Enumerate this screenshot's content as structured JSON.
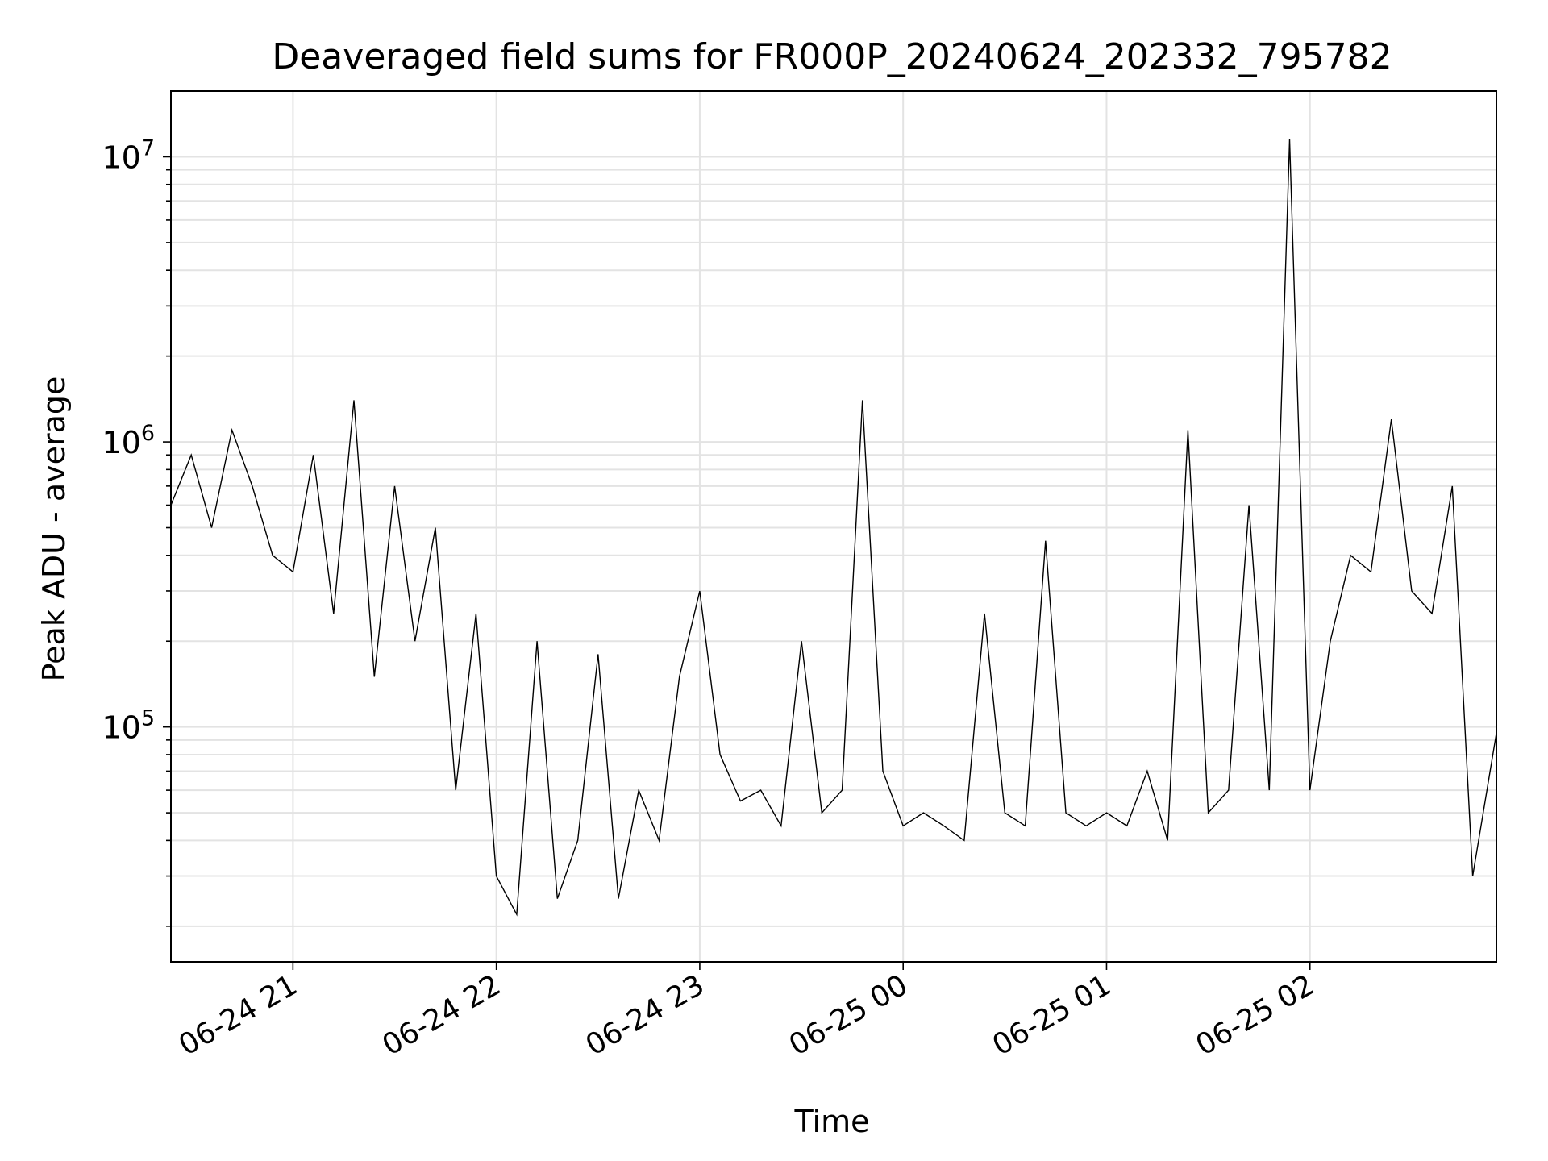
{
  "chart_data": {
    "type": "line",
    "title": "Deaveraged field sums for FR000P_20240624_202332_795782",
    "xlabel": "Time",
    "ylabel": "Peak ADU - average",
    "y_scale": "log",
    "ylim": [
      15000,
      17000000
    ],
    "xlim": [
      "2024-06-24 20:24",
      "2024-06-25 02:55"
    ],
    "grid": true,
    "legend": "none",
    "line_color": "#000000",
    "x_ticks": [
      {
        "value": "2024-06-24 21:00",
        "label": "06-24 21"
      },
      {
        "value": "2024-06-24 22:00",
        "label": "06-24 22"
      },
      {
        "value": "2024-06-24 23:00",
        "label": "06-24 23"
      },
      {
        "value": "2024-06-25 00:00",
        "label": "06-25 00"
      },
      {
        "value": "2024-06-25 01:00",
        "label": "06-25 01"
      },
      {
        "value": "2024-06-25 02:00",
        "label": "06-25 02"
      }
    ],
    "y_ticks": [
      {
        "value": 100000,
        "base": "10",
        "exp": "5"
      },
      {
        "value": 1000000,
        "base": "10",
        "exp": "6"
      },
      {
        "value": 10000000,
        "base": "10",
        "exp": "7"
      }
    ],
    "series": [
      {
        "x": [
          "2024-06-24 20:24",
          "2024-06-24 20:30",
          "2024-06-24 20:36",
          "2024-06-24 20:42",
          "2024-06-24 20:48",
          "2024-06-24 20:54",
          "2024-06-24 21:00",
          "2024-06-24 21:06",
          "2024-06-24 21:12",
          "2024-06-24 21:18",
          "2024-06-24 21:24",
          "2024-06-24 21:30",
          "2024-06-24 21:36",
          "2024-06-24 21:42",
          "2024-06-24 21:48",
          "2024-06-24 21:54",
          "2024-06-24 22:00",
          "2024-06-24 22:06",
          "2024-06-24 22:12",
          "2024-06-24 22:18",
          "2024-06-24 22:24",
          "2024-06-24 22:30",
          "2024-06-24 22:36",
          "2024-06-24 22:42",
          "2024-06-24 22:48",
          "2024-06-24 22:54",
          "2024-06-24 23:00",
          "2024-06-24 23:06",
          "2024-06-24 23:12",
          "2024-06-24 23:18",
          "2024-06-24 23:24",
          "2024-06-24 23:30",
          "2024-06-24 23:36",
          "2024-06-24 23:42",
          "2024-06-24 23:48",
          "2024-06-24 23:54",
          "2024-06-25 00:00",
          "2024-06-25 00:06",
          "2024-06-25 00:12",
          "2024-06-25 00:18",
          "2024-06-25 00:24",
          "2024-06-25 00:30",
          "2024-06-25 00:36",
          "2024-06-25 00:42",
          "2024-06-25 00:48",
          "2024-06-25 00:54",
          "2024-06-25 01:00",
          "2024-06-25 01:06",
          "2024-06-25 01:12",
          "2024-06-25 01:18",
          "2024-06-25 01:24",
          "2024-06-25 01:30",
          "2024-06-25 01:36",
          "2024-06-25 01:42",
          "2024-06-25 01:48",
          "2024-06-25 01:54",
          "2024-06-25 02:00",
          "2024-06-25 02:06",
          "2024-06-25 02:12",
          "2024-06-25 02:18",
          "2024-06-25 02:24",
          "2024-06-25 02:30",
          "2024-06-25 02:36",
          "2024-06-25 02:42",
          "2024-06-25 02:48",
          "2024-06-25 02:55"
        ],
        "y": [
          600000,
          900000,
          500000,
          1100000,
          700000,
          400000,
          350000,
          900000,
          250000,
          1400000,
          150000,
          700000,
          200000,
          500000,
          60000,
          250000,
          30000,
          22000,
          200000,
          25000,
          40000,
          180000,
          25000,
          60000,
          40000,
          150000,
          300000,
          80000,
          55000,
          60000,
          45000,
          200000,
          50000,
          60000,
          1400000,
          70000,
          45000,
          50000,
          45000,
          40000,
          250000,
          50000,
          45000,
          450000,
          50000,
          45000,
          50000,
          45000,
          70000,
          40000,
          1100000,
          50000,
          60000,
          600000,
          60000,
          11500000,
          60000,
          200000,
          400000,
          350000,
          1200000,
          300000,
          250000,
          700000,
          30000,
          95000
        ]
      }
    ]
  }
}
